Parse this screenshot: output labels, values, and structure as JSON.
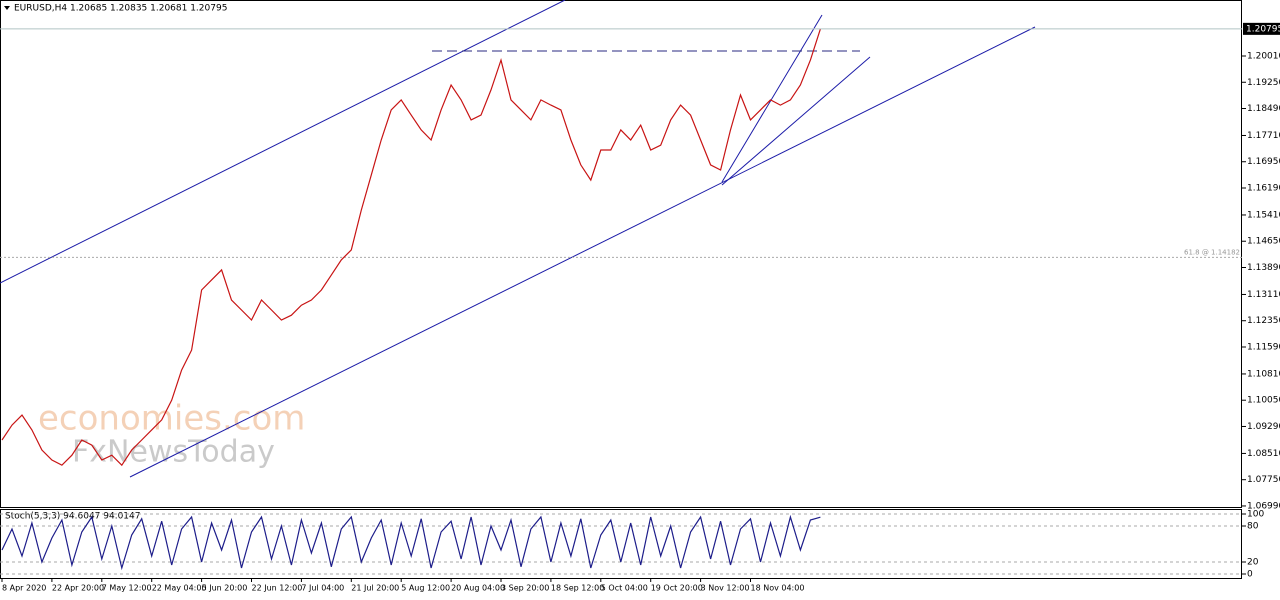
{
  "chart_data": [
    {
      "type": "line",
      "title": "EURUSD,H4  1.20685 1.20835 1.20681 1.20795",
      "color": "#c81414",
      "watermark": [
        "economies.com",
        "FxNewsToday"
      ],
      "annotation": {
        "value": 1.14182,
        "label": "61.8 @ 1.14182"
      },
      "categories": [
        "8 Apr 2020",
        null,
        null,
        null,
        null,
        "22 Apr 20:00",
        null,
        null,
        null,
        null,
        "7 May 12:00",
        null,
        null,
        null,
        null,
        "22 May 04:00",
        null,
        null,
        null,
        null,
        "5 Jun 20:00",
        null,
        null,
        null,
        null,
        "22 Jun 12:00",
        null,
        null,
        null,
        null,
        "7 Jul 04:00",
        null,
        null,
        null,
        null,
        "21 Jul 20:00",
        null,
        null,
        null,
        null,
        "5 Aug 12:00",
        null,
        null,
        null,
        null,
        "20 Aug 04:00",
        null,
        null,
        null,
        null,
        "3 Sep 20:00",
        null,
        null,
        null,
        null,
        "18 Sep 12:00",
        null,
        null,
        null,
        null,
        "5 Oct 04:00",
        null,
        null,
        null,
        null,
        "19 Oct 20:00",
        null,
        null,
        null,
        null,
        "3 Nov 12:00",
        null,
        null,
        null,
        null,
        "18 Nov 04:00",
        null,
        null,
        null,
        null,
        null,
        null,
        null
      ],
      "values": [
        1.089,
        1.0933,
        1.0962,
        1.0919,
        1.0861,
        1.0832,
        1.0817,
        1.0846,
        1.089,
        1.0875,
        1.0832,
        1.0846,
        1.0817,
        1.0861,
        1.089,
        1.0919,
        1.0948,
        1.1005,
        1.1092,
        1.115,
        1.1324,
        1.1353,
        1.1382,
        1.1295,
        1.1266,
        1.1237,
        1.1295,
        1.1266,
        1.1237,
        1.1251,
        1.128,
        1.1295,
        1.1324,
        1.1367,
        1.1411,
        1.144,
        1.1555,
        1.1657,
        1.1758,
        1.1845,
        1.1874,
        1.183,
        1.1787,
        1.1758,
        1.1845,
        1.1917,
        1.1874,
        1.1816,
        1.183,
        1.1903,
        1.1989,
        1.1874,
        1.1845,
        1.1816,
        1.1874,
        1.1859,
        1.1845,
        1.1758,
        1.1686,
        1.1642,
        1.1729,
        1.1729,
        1.1787,
        1.1758,
        1.1801,
        1.1729,
        1.1743,
        1.1816,
        1.1859,
        1.183,
        1.1758,
        1.1686,
        1.1671,
        1.1787,
        1.1888,
        1.1816,
        1.1845,
        1.1874,
        1.1859,
        1.1874,
        1.1917,
        1.1989,
        1.20795
      ],
      "ylim": [
        1.0696,
        1.2163
      ],
      "yticks": [
        {
          "value": 1.2001,
          "label": "1.20010"
        },
        {
          "value": 1.1925,
          "label": "1.19250"
        },
        {
          "value": 1.1849,
          "label": "1.18490"
        },
        {
          "value": 1.1771,
          "label": "1.17710"
        },
        {
          "value": 1.1695,
          "label": "1.16950"
        },
        {
          "value": 1.1619,
          "label": "1.16190"
        },
        {
          "value": 1.1541,
          "label": "1.15410"
        },
        {
          "value": 1.1465,
          "label": "1.14650"
        },
        {
          "value": 1.1389,
          "label": "1.13890"
        },
        {
          "value": 1.1311,
          "label": "1.13110"
        },
        {
          "value": 1.1235,
          "label": "1.12350"
        },
        {
          "value": 1.1159,
          "label": "1.11590"
        },
        {
          "value": 1.1081,
          "label": "1.10810"
        },
        {
          "value": 1.1005,
          "label": "1.10050"
        },
        {
          "value": 1.0929,
          "label": "1.09290"
        },
        {
          "value": 1.0851,
          "label": "1.08510"
        },
        {
          "value": 1.0775,
          "label": "1.07750"
        },
        {
          "value": 1.0699,
          "label": "1.06990"
        }
      ]
    },
    {
      "type": "line",
      "title": "Stoch(5,3,3) 94.6047 94.0147",
      "color": "#1d1d8a",
      "values": [
        40,
        75,
        30,
        85,
        20,
        60,
        90,
        15,
        70,
        95,
        25,
        80,
        10,
        65,
        92,
        30,
        88,
        15,
        75,
        95,
        20,
        85,
        40,
        90,
        10,
        70,
        95,
        25,
        80,
        15,
        90,
        35,
        85,
        12,
        75,
        95,
        20,
        60,
        90,
        15,
        85,
        30,
        92,
        10,
        70,
        88,
        25,
        95,
        15,
        80,
        40,
        90,
        12,
        75,
        95,
        20,
        85,
        30,
        92,
        10,
        65,
        90,
        20,
        85,
        15,
        95,
        30,
        80,
        10,
        70,
        95,
        25,
        88,
        15,
        75,
        92,
        20,
        85,
        30,
        95,
        40,
        90,
        94.6047
      ],
      "ylim": [
        0,
        100
      ],
      "yticks": [
        100,
        80,
        20,
        0
      ]
    }
  ]
}
